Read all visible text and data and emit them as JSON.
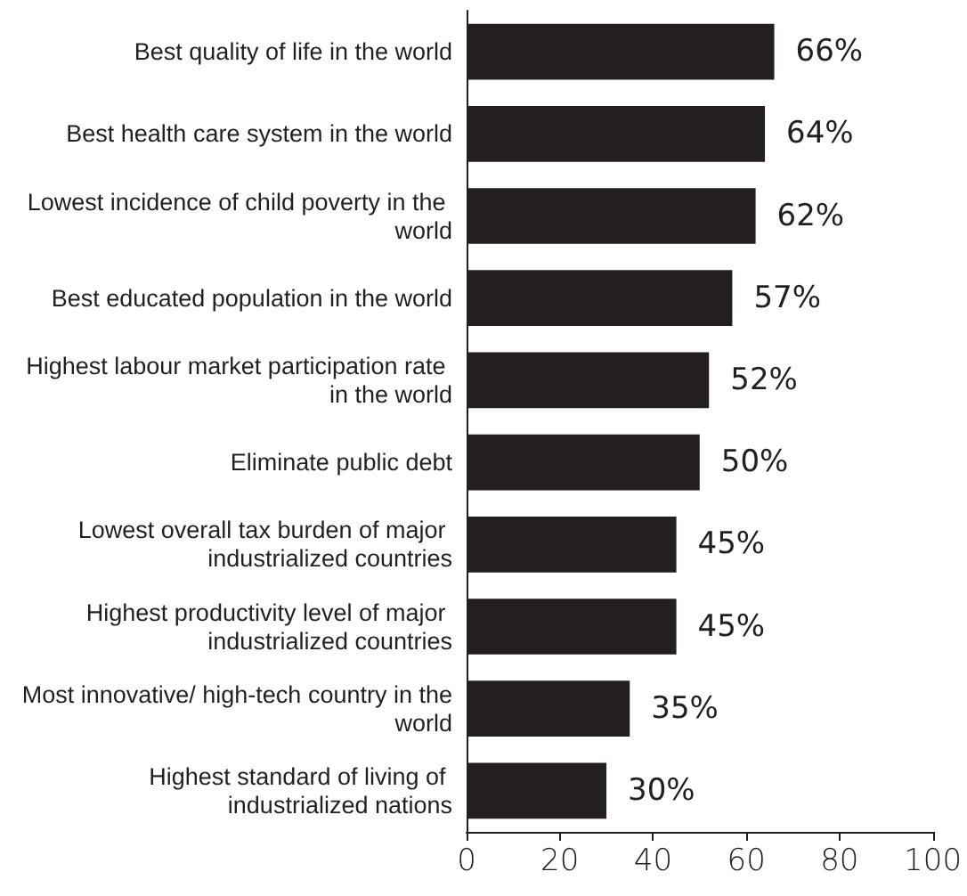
{
  "chart_data": {
    "type": "bar",
    "orientation": "horizontal",
    "categories": [
      "Best quality of life in the world",
      "Best health care system in the world",
      "Lowest incidence of child poverty in the world",
      "Best educated population in the world",
      "Highest labour market participation rate in the world",
      "Eliminate public debt",
      "Lowest overall tax burden of major industrialized countries",
      "Highest productivity level of major industrialized countries",
      "Most innovative/ high-tech country in the world",
      "Highest standard of living of industrialized nations"
    ],
    "values": [
      66,
      64,
      62,
      57,
      52,
      50,
      45,
      45,
      35,
      30
    ],
    "value_labels": [
      "66%",
      "64%",
      "62%",
      "57%",
      "52%",
      "50%",
      "45%",
      "45%",
      "35%",
      "30%"
    ],
    "color": "#231f20",
    "xlim": [
      0,
      100
    ],
    "xticks": [
      0,
      20,
      40,
      60,
      80,
      100
    ]
  }
}
